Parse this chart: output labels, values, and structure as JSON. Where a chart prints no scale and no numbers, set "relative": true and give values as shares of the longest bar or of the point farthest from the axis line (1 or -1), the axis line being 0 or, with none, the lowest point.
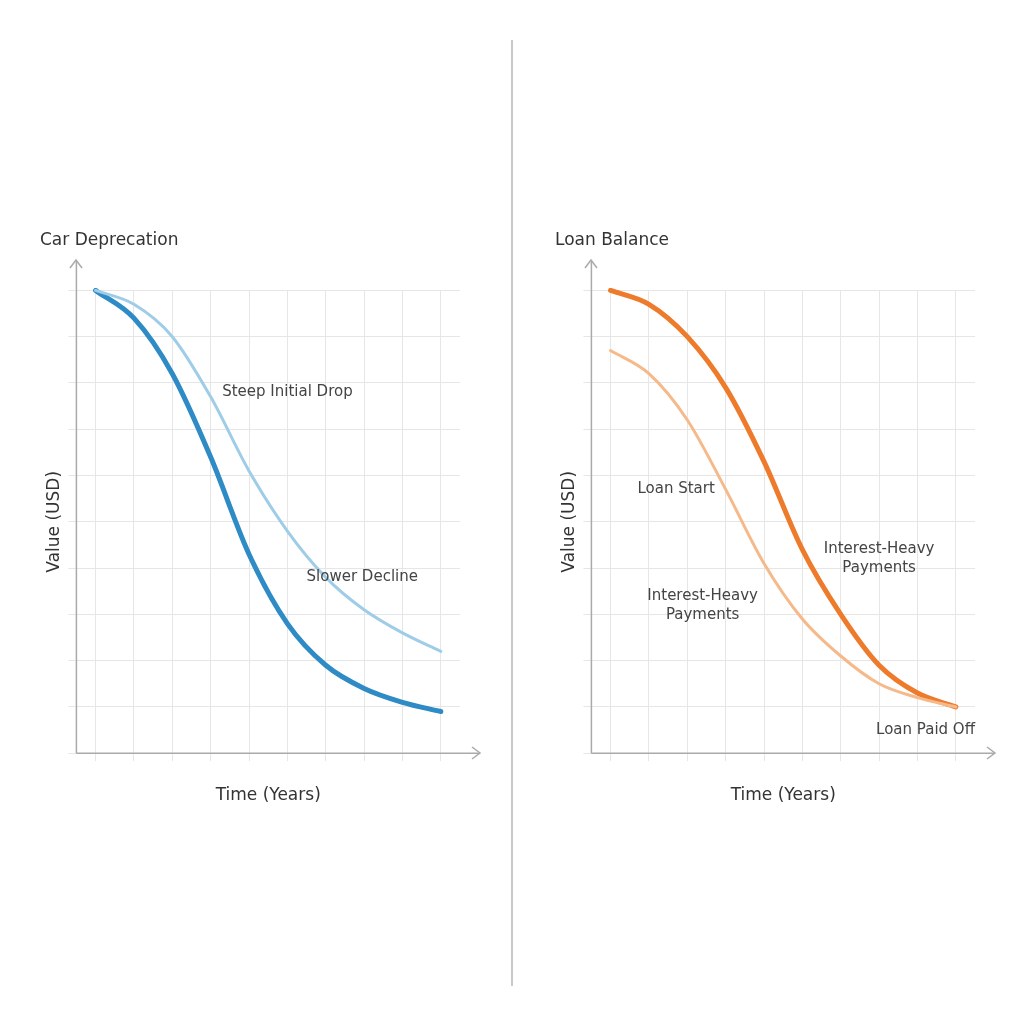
{
  "chart_data": [
    {
      "type": "line",
      "title": "Car Deprecation",
      "xlabel": "Time (Years)",
      "ylabel": "Value (USD)",
      "relative": true,
      "grid": true,
      "legend": false,
      "marker": "none",
      "line_style": "solid",
      "categories": [
        null,
        null,
        null,
        null,
        null,
        null,
        null,
        null,
        null,
        null
      ],
      "series": [
        {
          "color": "#9fcde8",
          "values": [
            1,
            0.97,
            0.9,
            0.77,
            0.61,
            0.48,
            0.38,
            0.31,
            0.26,
            0.22
          ]
        },
        {
          "color": "#2e8bc6",
          "values": [
            1,
            0.94,
            0.82,
            0.64,
            0.43,
            0.28,
            0.19,
            0.14,
            0.11,
            0.09
          ]
        }
      ],
      "annotations": [
        "Steep Initial Drop",
        "Slower Decline"
      ]
    },
    {
      "type": "line",
      "title": "Loan Balance",
      "xlabel": "Time (Years)",
      "ylabel": "Value (USD)",
      "relative": true,
      "grid": true,
      "legend": false,
      "marker": "none",
      "line_style": "solid",
      "categories": [
        null,
        null,
        null,
        null,
        null,
        null,
        null,
        null,
        null,
        null
      ],
      "series": [
        {
          "color": "#f5b98a",
          "values": [
            0.87,
            0.82,
            0.72,
            0.57,
            0.41,
            0.29,
            0.21,
            0.15,
            0.12,
            0.1
          ]
        },
        {
          "color": "#ee7b2b",
          "values": [
            1,
            0.97,
            0.9,
            0.79,
            0.63,
            0.44,
            0.3,
            0.19,
            0.13,
            0.1
          ]
        }
      ],
      "annotations": [
        "Loan Start",
        "Interest-Heavy Payments",
        "Interest-Heavy Payments",
        "Loan Paid Off"
      ]
    }
  ]
}
